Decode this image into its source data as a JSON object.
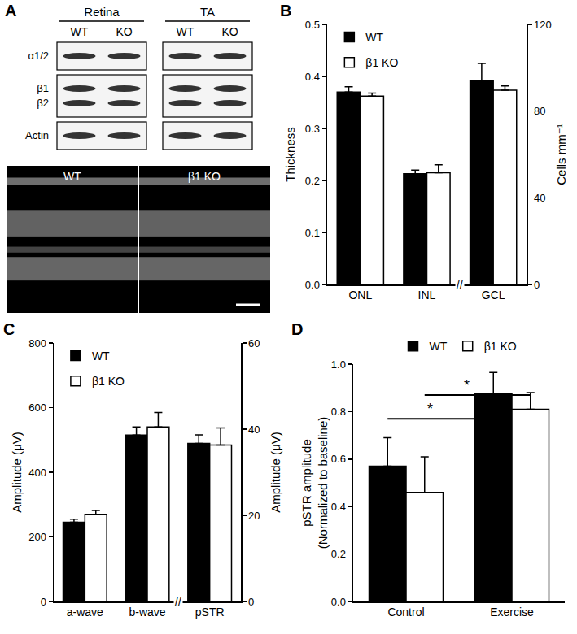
{
  "figure_a": {
    "panel": "A",
    "blot": {
      "groups": [
        {
          "label": "Retina",
          "lanes": [
            "WT",
            "KO"
          ]
        },
        {
          "label": "TA",
          "lanes": [
            "WT",
            "KO"
          ]
        }
      ],
      "rows": [
        [
          "α1/2"
        ],
        [
          "β1",
          "β2"
        ],
        [
          "Actin"
        ]
      ]
    },
    "micrograph": {
      "labels": [
        "WT",
        "β1 KO"
      ]
    }
  },
  "chart_data": [
    {
      "panel": "B",
      "type": "bar",
      "categories": [
        "ONL",
        "INL",
        "GCL"
      ],
      "ylabel": "Thickness",
      "y2label": "Cells mm⁻¹",
      "ylim": [
        0,
        0.5
      ],
      "yticks": [
        {
          "value": 0,
          "label": "0.0"
        },
        0.1,
        0.2,
        0.3,
        0.4,
        0.5
      ],
      "y2lim": [
        0,
        120
      ],
      "y2ticks": [
        0,
        40,
        80,
        120
      ],
      "grid": false,
      "legend": "top left",
      "annotations": [
        {
          "text": "//",
          "x": 1.5
        }
      ],
      "series": [
        {
          "name": "WT",
          "color": "#000000",
          "values": [
            0.37,
            0.213,
            null
          ],
          "errors": [
            0.01,
            0.007,
            null
          ]
        },
        {
          "name": "β1 KO",
          "color": "#ffffff",
          "values": [
            0.362,
            0.215,
            null
          ],
          "errors": [
            0.006,
            0.015,
            null
          ]
        },
        {
          "name": "WT",
          "color": "#000000",
          "axis": "y2",
          "values": [
            null,
            null,
            94
          ],
          "errors": [
            null,
            null,
            8
          ]
        },
        {
          "name": "β1 KO",
          "color": "#ffffff",
          "axis": "y2",
          "values": [
            null,
            null,
            89.6
          ],
          "errors": [
            null,
            null,
            2
          ]
        }
      ]
    },
    {
      "panel": "C",
      "type": "bar",
      "categories": [
        "a-wave",
        "b-wave",
        "pSTR"
      ],
      "ylabel": "Amplitude (μV)",
      "y2label": "Amplitude (μV)",
      "ylim": [
        0,
        800
      ],
      "yticks": [
        0,
        200,
        400,
        600,
        800
      ],
      "y2lim": [
        0,
        60
      ],
      "y2ticks": [
        0,
        20,
        40,
        60
      ],
      "grid": false,
      "legend": "top left",
      "annotations": [
        {
          "text": "//",
          "x": 1.5
        }
      ],
      "series": [
        {
          "name": "WT",
          "color": "#000000",
          "values": [
            245,
            515,
            null
          ],
          "errors": [
            10,
            25,
            null
          ]
        },
        {
          "name": "β1 KO",
          "color": "#ffffff",
          "values": [
            270,
            540,
            null
          ],
          "errors": [
            12,
            45,
            null
          ]
        },
        {
          "name": "WT",
          "color": "#000000",
          "axis": "y2",
          "values": [
            null,
            null,
            36.7
          ],
          "errors": [
            null,
            null,
            2
          ]
        },
        {
          "name": "β1 KO",
          "color": "#ffffff",
          "axis": "y2",
          "values": [
            null,
            null,
            36.3
          ],
          "errors": [
            null,
            null,
            4
          ]
        }
      ]
    },
    {
      "panel": "D",
      "type": "bar",
      "categories": [
        "Control",
        "Exercise"
      ],
      "ylabel": "pSTR amplitude\n(Normalized to baseline)",
      "ylim": [
        0,
        1
      ],
      "yticks": [
        {
          "value": 0,
          "label": "0.0"
        },
        0.2,
        0.4,
        0.6,
        0.8,
        {
          "value": 1,
          "label": "1.0"
        }
      ],
      "grid": false,
      "legend": "top",
      "significance": [
        {
          "text": "*",
          "series": "WT",
          "from": "Control",
          "to": "Exercise",
          "y": 0.77
        },
        {
          "text": "*",
          "series": "β1 KO",
          "from": "Control",
          "to": "Exercise",
          "y": 0.87
        }
      ],
      "series": [
        {
          "name": "WT",
          "color": "#000000",
          "values": [
            0.57,
            0.875
          ],
          "errors": [
            0.12,
            0.09
          ]
        },
        {
          "name": "β1 KO",
          "color": "#ffffff",
          "values": [
            0.46,
            0.81
          ],
          "errors": [
            0.15,
            0.07
          ]
        }
      ]
    }
  ]
}
